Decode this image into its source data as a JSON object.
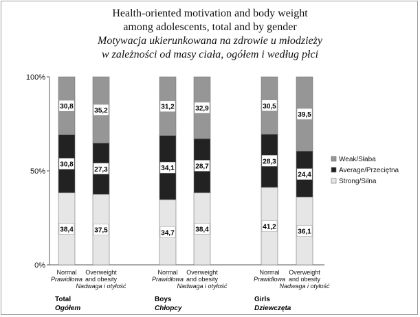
{
  "chart_data": {
    "type": "bar",
    "stacked": true,
    "title_lines": [
      "Health-oriented motivation and body weight",
      "among adolescents, total and by gender",
      "Motywacja ukierunkowana na zdrowie u młodzieży",
      "w zależności od masy ciała, ogółem i według płci"
    ],
    "ylim": [
      0,
      100
    ],
    "yticks": [
      "0%",
      "50%",
      "100%"
    ],
    "legend_position": "right",
    "series": [
      {
        "name": "Strong/Silna",
        "color": "#e6e6e6",
        "values": [
          38.4,
          37.5,
          34.7,
          38.4,
          41.2,
          36.1
        ]
      },
      {
        "name": "Average/Przeciętna",
        "color": "#222222",
        "values": [
          30.8,
          27.3,
          34.1,
          28.7,
          28.3,
          24.4
        ]
      },
      {
        "name": "Weak/Słaba",
        "color": "#969696",
        "values": [
          30.8,
          35.2,
          31.2,
          32.9,
          30.5,
          39.5
        ]
      }
    ],
    "value_labels": [
      [
        "38,4",
        "37,5",
        "34,7",
        "38,4",
        "41,2",
        "36,1"
      ],
      [
        "30,8",
        "27,3",
        "34,1",
        "28,7",
        "28,3",
        "24,4"
      ],
      [
        "30,8",
        "35,2",
        "31,2",
        "32,9",
        "30,5",
        "39,5"
      ]
    ],
    "categories": [
      {
        "lines": [
          "Normal"
        ],
        "italic": [
          "Prawidłowa"
        ]
      },
      {
        "lines": [
          "Overweight",
          "and obesity"
        ],
        "italic": [
          "Nadwaga i otyłość"
        ]
      },
      {
        "lines": [
          "Normal"
        ],
        "italic": [
          "Prawidłowa"
        ]
      },
      {
        "lines": [
          "Overweight",
          "and obesity"
        ],
        "italic": [
          "Nadwaga i otyłość"
        ]
      },
      {
        "lines": [
          "Normal"
        ],
        "italic": [
          "Prawidłowa"
        ]
      },
      {
        "lines": [
          "Overweight",
          "and obesity"
        ],
        "italic": [
          "Nadwaga i otyłość"
        ]
      }
    ],
    "groups": [
      {
        "name": "Total",
        "name_pl": "Ogółem"
      },
      {
        "name": "Boys",
        "name_pl": "Chłopcy"
      },
      {
        "name": "Girls",
        "name_pl": "Dziewczęta"
      }
    ]
  }
}
